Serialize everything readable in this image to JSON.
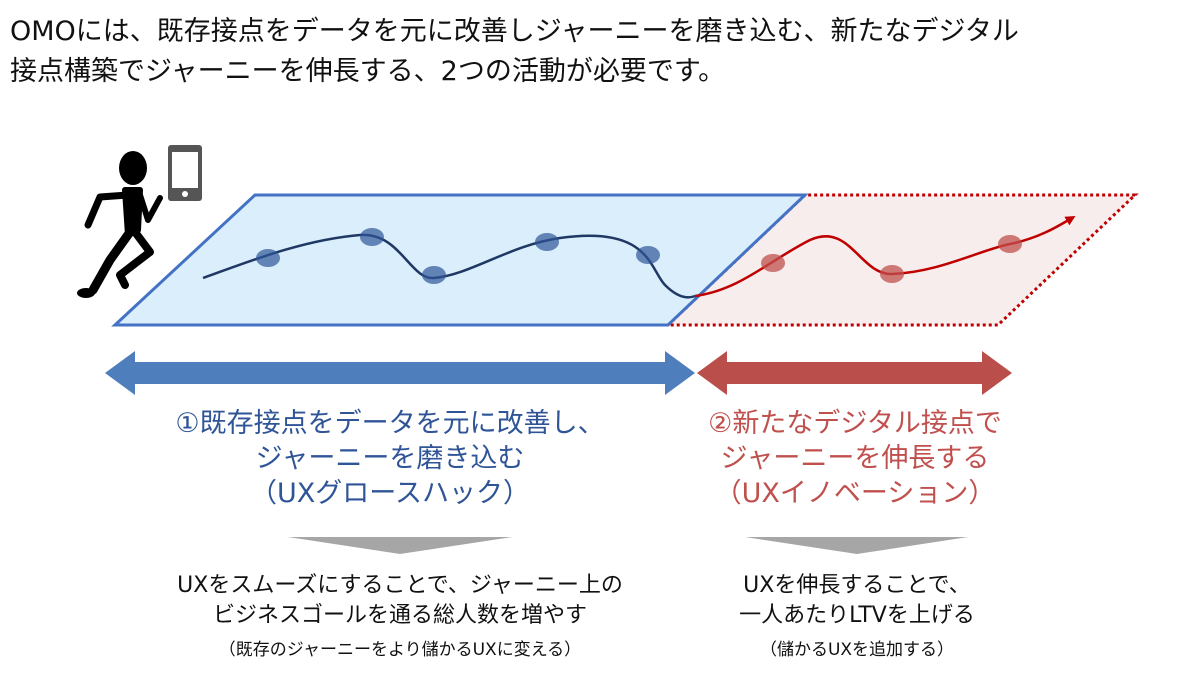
{
  "title": {
    "line1": "OMOには、既存接点をデータを元に改善しジャーニーを磨き込む、新たなデジタル",
    "line2": "接点構築でジャーニーを伸長する、2つの活動が必要です。"
  },
  "colors": {
    "blue": "#2f5597",
    "blue_fill": "#dbeefc",
    "red": "#c00000",
    "red_fill": "#f7eded",
    "gray": "#a6a6a6"
  },
  "icons": [
    "runner-icon",
    "smartphone-icon"
  ],
  "growth_hack": {
    "line1": "①既存接点をデータを元に改善し、",
    "line2": "ジャーニーを磨き込む",
    "line3": "（UXグロースハック）",
    "result_line1": "UXをスムーズにすることで、ジャーニー上の",
    "result_line2": "ビジネスゴールを通る総人数を増やす",
    "result_note": "（既存のジャーニーをより儲かるUXに変える）"
  },
  "innovation": {
    "line1": "②新たなデジタル接点で",
    "line2": "ジャーニーを伸長する",
    "line3": "（UXイノベーション）",
    "result_line1": "UXを伸長することで、",
    "result_line2": "一人あたりLTVを上げる",
    "result_note": "（儲かるUXを追加する）"
  }
}
